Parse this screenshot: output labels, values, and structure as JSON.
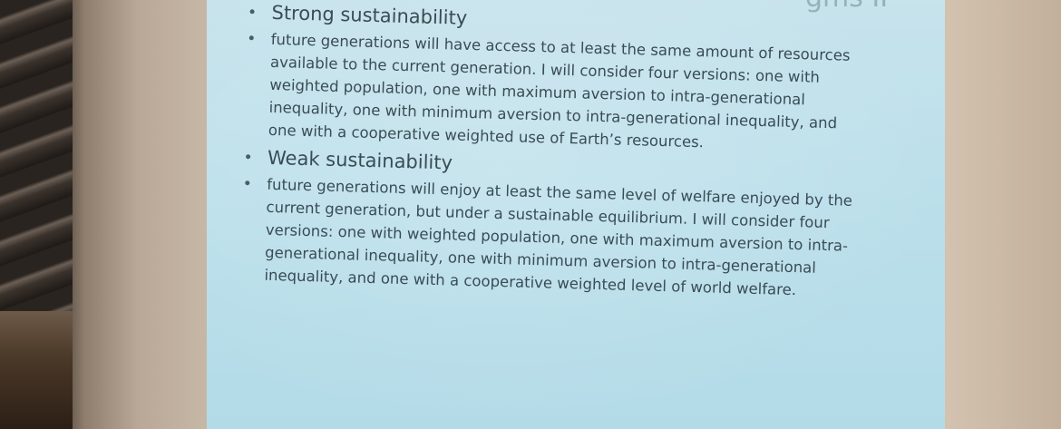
{
  "slide": {
    "title_fragment": "gms II",
    "sections": [
      {
        "heading": "Strong sustainability",
        "lines": [
          "future generations will have access to at least the same amount of resources",
          "available to the current generation. I will consider four versions: one with",
          "weighted population, one with maximum aversion to intra-generational",
          "inequality, one with minimum aversion to intra-generational inequality, and",
          "one with a cooperative weighted use of Earth’s resources."
        ]
      },
      {
        "heading": "Weak sustainability",
        "lines": [
          "future generations will enjoy at least the same level of welfare enjoyed by the",
          "current generation, but under a sustainable equilibrium. I will consider four",
          "versions: one with weighted population, one with maximum aversion to intra-",
          "generational inequality, one with minimum aversion to intra-generational",
          "inequality, and one with a cooperative weighted level of world welfare."
        ]
      }
    ]
  }
}
